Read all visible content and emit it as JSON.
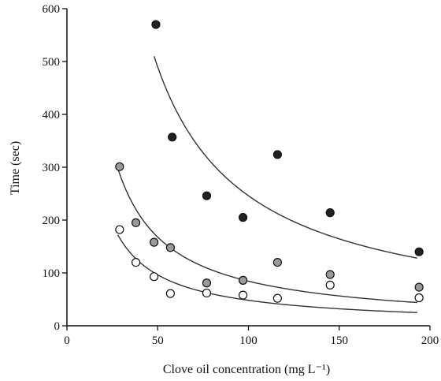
{
  "chart_data": {
    "type": "scatter",
    "xlabel": "Clove oil concentration (mg L⁻¹)",
    "ylabel": "Time (sec)",
    "xlim": [
      0,
      200
    ],
    "ylim": [
      0,
      600
    ],
    "xticks": [
      0,
      50,
      100,
      150,
      200
    ],
    "yticks": [
      0,
      100,
      200,
      300,
      400,
      500,
      600
    ],
    "grid": false,
    "series": [
      {
        "marker": "filled-black",
        "color": "#222222",
        "x": [
          49,
          58,
          77,
          97,
          116,
          145,
          194
        ],
        "y": [
          570,
          357,
          246,
          205,
          324,
          214,
          140
        ],
        "fit_curve": {
          "x_range": [
            48,
            193
          ],
          "y_start": 510,
          "y_end": 128
        }
      },
      {
        "marker": "filled-gray",
        "color": "#9a9a9a",
        "x": [
          29,
          38,
          48,
          57,
          77,
          97,
          116,
          145,
          194
        ],
        "y": [
          301,
          195,
          158,
          148,
          81,
          86,
          120,
          97,
          73
        ],
        "fit_curve": {
          "x_range": [
            28,
            193
          ],
          "y_start": 298,
          "y_end": 44
        }
      },
      {
        "marker": "open-white",
        "color": "#ffffff",
        "x": [
          29,
          38,
          48,
          57,
          77,
          97,
          116,
          145,
          194
        ],
        "y": [
          182,
          120,
          93,
          61,
          62,
          58,
          52,
          77,
          53
        ],
        "fit_curve": {
          "x_range": [
            28,
            193
          ],
          "y_start": 172,
          "y_end": 25
        }
      }
    ]
  }
}
